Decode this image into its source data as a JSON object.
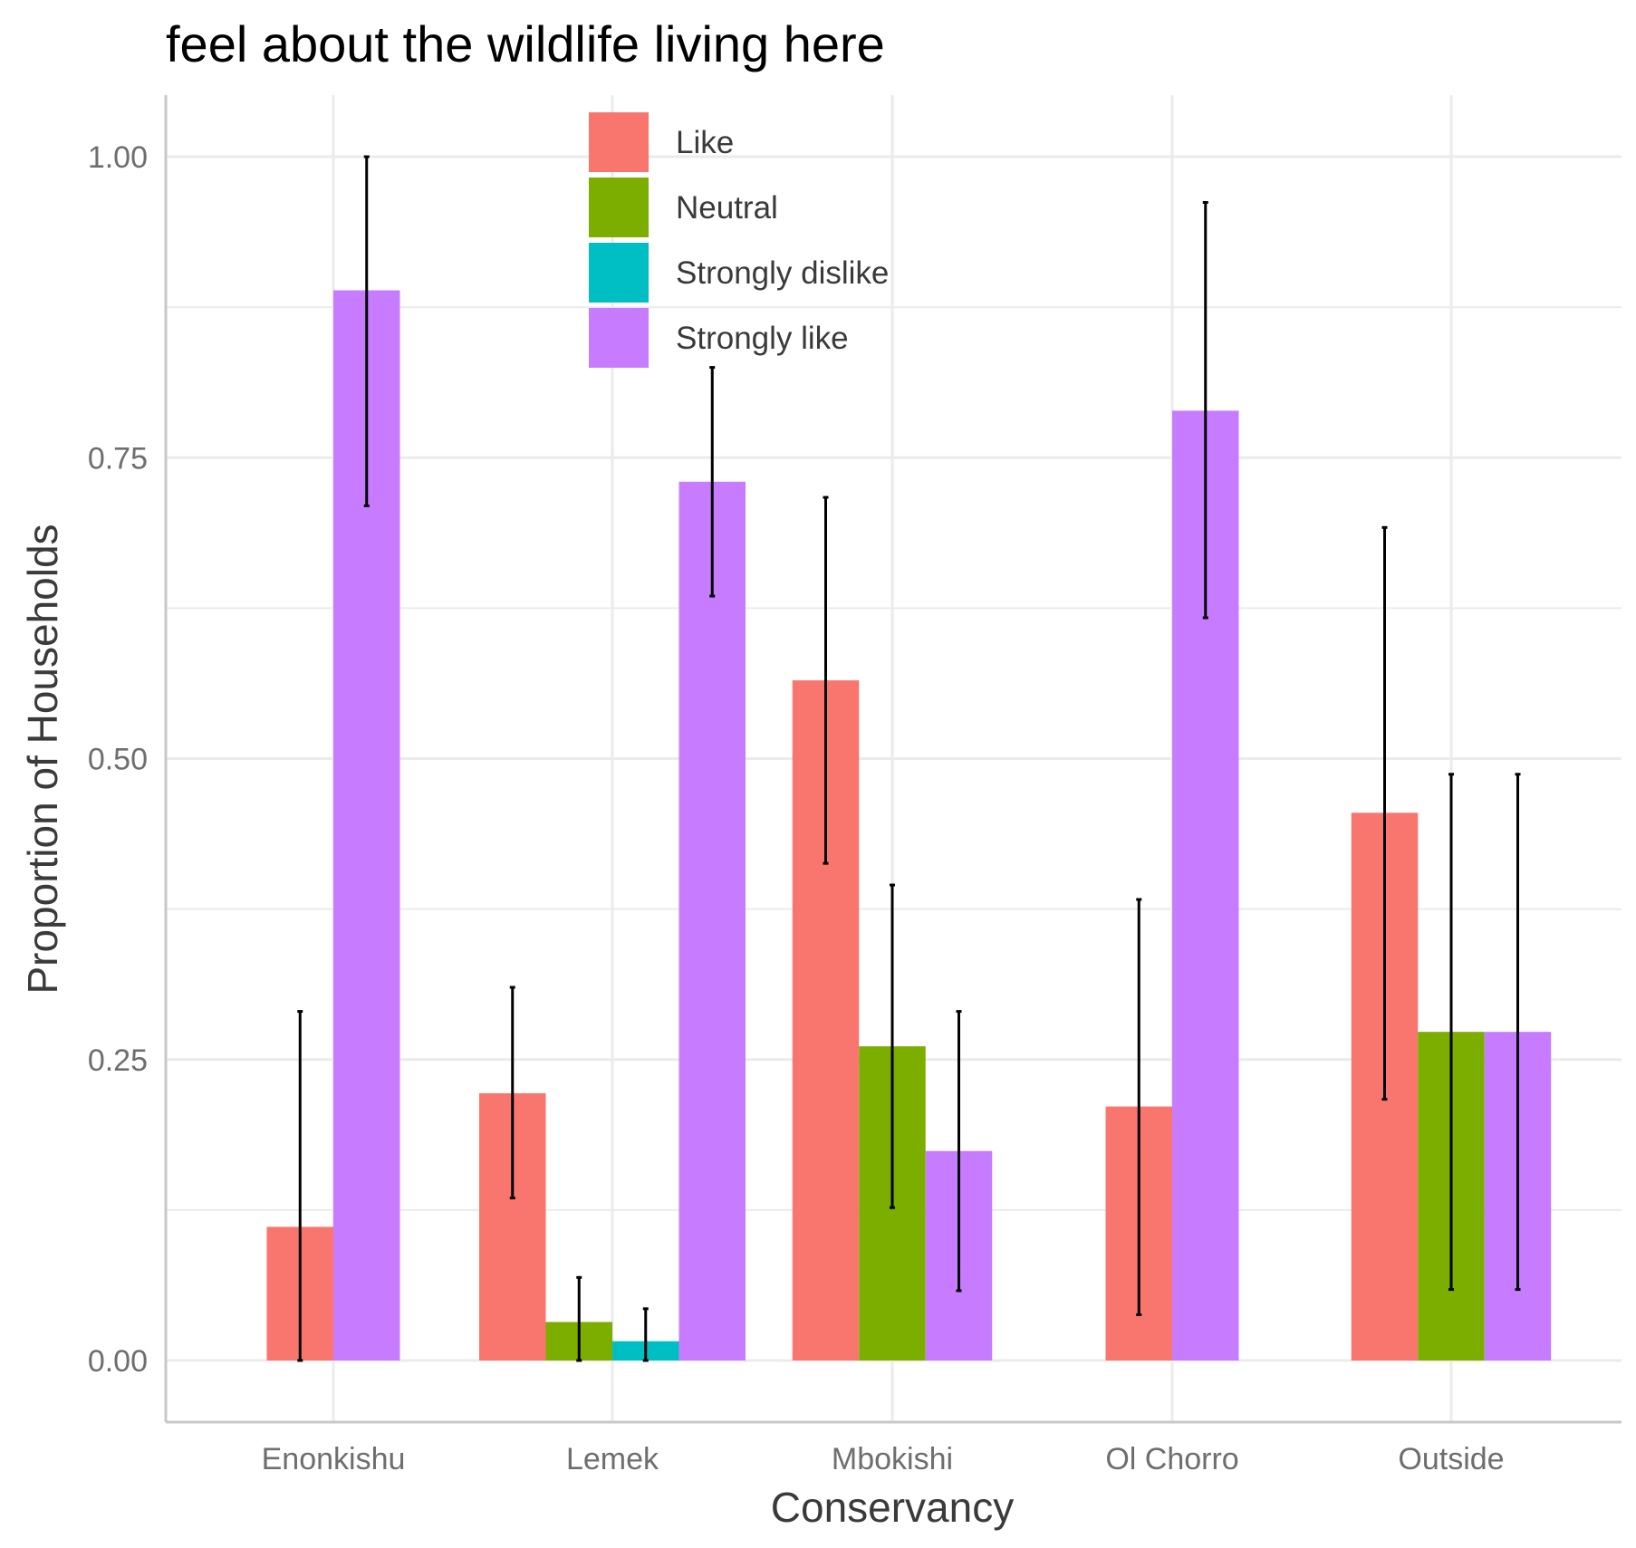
{
  "chart_data": {
    "type": "bar",
    "title": "feel about the wildlife living here",
    "xlabel": "Conservancy",
    "ylabel": "Proportion of Households",
    "ylim": [
      -0.1,
      1.06
    ],
    "yticks": [
      "0.00",
      "0.25",
      "0.50",
      "0.75",
      "1.00"
    ],
    "ytick_values": [
      0,
      0.25,
      0.5,
      0.75,
      1.0
    ],
    "grid": true,
    "legend_position": "top-center",
    "categories": [
      "Enonkishu",
      "Lemek",
      "Mbokishi",
      "Ol Chorro",
      "Outside"
    ],
    "series": [
      {
        "name": "Like",
        "color": "#F8766D",
        "values": [
          0.111,
          0.222,
          0.565,
          0.211,
          0.455
        ],
        "lower": [
          0.0,
          0.135,
          0.413,
          0.038,
          0.217
        ],
        "upper": [
          0.29,
          0.31,
          0.717,
          0.383,
          0.692
        ]
      },
      {
        "name": "Neutral",
        "color": "#7CAE00",
        "values": [
          null,
          0.032,
          0.261,
          null,
          0.273
        ],
        "lower": [
          null,
          0.0,
          0.127,
          null,
          0.059
        ],
        "upper": [
          null,
          0.069,
          0.395,
          null,
          0.487
        ]
      },
      {
        "name": "Strongly dislike",
        "color": "#00BFC4",
        "values": [
          null,
          0.016,
          null,
          null,
          null
        ],
        "lower": [
          null,
          0.0,
          null,
          null,
          null
        ],
        "upper": [
          null,
          0.043,
          null,
          null,
          null
        ]
      },
      {
        "name": "Strongly like",
        "color": "#C77CFF",
        "values": [
          0.889,
          0.73,
          0.174,
          0.789,
          0.273
        ],
        "lower": [
          0.71,
          0.635,
          0.058,
          0.617,
          0.059
        ],
        "upper": [
          1.0,
          0.825,
          0.29,
          0.962,
          0.487
        ]
      }
    ]
  }
}
